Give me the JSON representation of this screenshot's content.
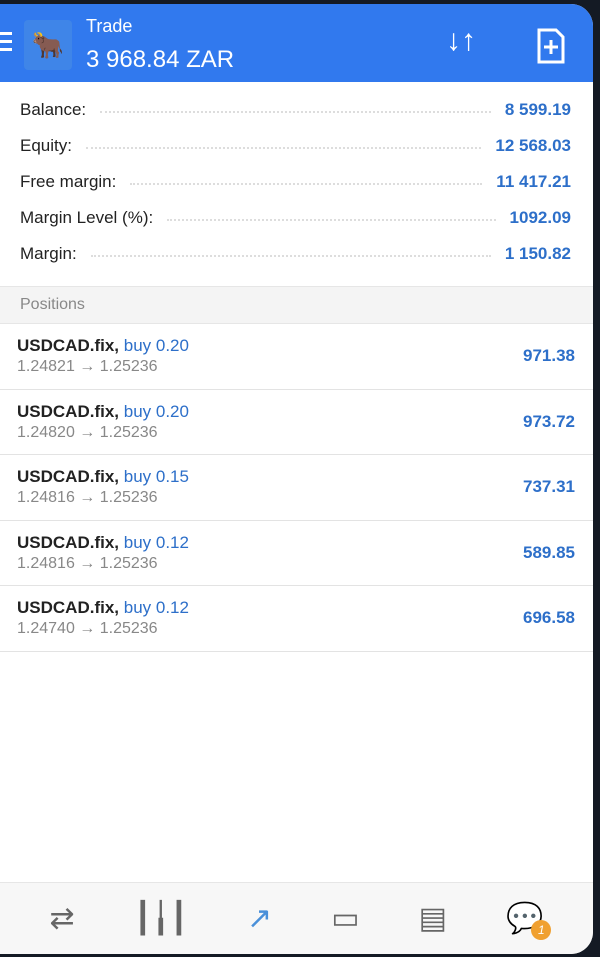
{
  "header": {
    "title": "Trade",
    "balance": "3 968.84 ZAR",
    "icons": [
      "menu-icon",
      "sort-icon",
      "new-order-icon"
    ]
  },
  "summary": [
    {
      "label": "Balance:",
      "value": "8 599.19"
    },
    {
      "label": "Equity:",
      "value": "12 568.03"
    },
    {
      "label": "Free margin:",
      "value": "11 417.21"
    },
    {
      "label": "Margin Level (%):",
      "value": "1092.09"
    },
    {
      "label": "Margin:",
      "value": "1 150.82"
    }
  ],
  "positions_label": "Positions",
  "positions": [
    {
      "symbol": "USDCAD.fix,",
      "dir": "buy 0.20",
      "prices": "1.24821 → 1.25236",
      "profit": "971.38"
    },
    {
      "symbol": "USDCAD.fix,",
      "dir": "buy 0.20",
      "prices": "1.24820 → 1.25236",
      "profit": "973.72"
    },
    {
      "symbol": "USDCAD.fix,",
      "dir": "buy 0.15",
      "prices": "1.24816 → 1.25236",
      "profit": "737.31"
    },
    {
      "symbol": "USDCAD.fix,",
      "dir": "buy 0.12",
      "prices": "1.24816 → 1.25236",
      "profit": "589.85"
    },
    {
      "symbol": "USDCAD.fix,",
      "dir": "buy 0.12",
      "prices": "1.24740 → 1.25236",
      "profit": "696.58"
    }
  ],
  "nav": {
    "items": [
      "quotes",
      "charts",
      "trade",
      "history",
      "news",
      "messages"
    ],
    "active": "trade",
    "badge": "1"
  },
  "colors": {
    "header": "#3179ee",
    "accent": "#2d6fc9",
    "badge": "#f0a030"
  }
}
